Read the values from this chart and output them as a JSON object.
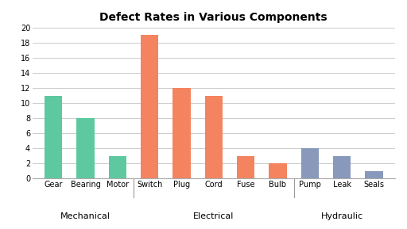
{
  "title": "Defect Rates in Various Components",
  "categories": [
    "Gear",
    "Bearing",
    "Motor",
    "Switch",
    "Plug",
    "Cord",
    "Fuse",
    "Bulb",
    "Pump",
    "Leak",
    "Seals"
  ],
  "values": [
    11,
    8,
    3,
    19,
    12,
    11,
    3,
    2,
    4,
    3,
    1
  ],
  "colors": [
    "#5ec9a0",
    "#5ec9a0",
    "#5ec9a0",
    "#f4845f",
    "#f4845f",
    "#f4845f",
    "#f4845f",
    "#f4845f",
    "#8899bb",
    "#8899bb",
    "#8899bb"
  ],
  "groups": [
    {
      "label": "Mechanical",
      "indices": [
        0,
        1,
        2
      ]
    },
    {
      "label": "Electrical",
      "indices": [
        3,
        4,
        5,
        6,
        7
      ]
    },
    {
      "label": "Hydraulic",
      "indices": [
        8,
        9,
        10
      ]
    }
  ],
  "group_separators": [
    2.5,
    7.5
  ],
  "ylim": [
    0,
    20
  ],
  "yticks": [
    0,
    2,
    4,
    6,
    8,
    10,
    12,
    14,
    16,
    18,
    20
  ],
  "background_color": "#ffffff",
  "grid_color": "#cccccc",
  "title_fontsize": 10,
  "tick_fontsize": 7,
  "group_label_fontsize": 8,
  "bar_width": 0.55
}
